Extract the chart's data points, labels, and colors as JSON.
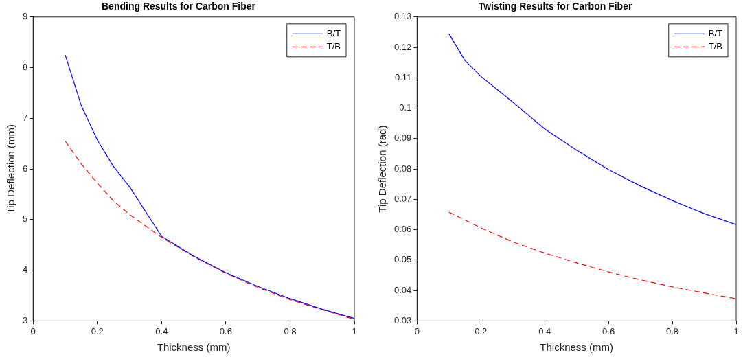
{
  "chart_data": [
    {
      "type": "line",
      "title": "Bending Results for Carbon Fiber",
      "xlabel": "Thickness (mm)",
      "ylabel": "Tip Deflection (mm)",
      "xlim": [
        0,
        1
      ],
      "xticks": [
        0,
        0.2,
        0.4,
        0.6,
        0.8,
        1
      ],
      "ylim": [
        3,
        9
      ],
      "yticks": [
        3,
        4,
        5,
        6,
        7,
        8,
        9
      ],
      "grid": false,
      "legend": "top right",
      "series": [
        {
          "name": "B/T",
          "color": "#0000ff",
          "line_style": "solid",
          "x": [
            0.1,
            0.15,
            0.2,
            0.25,
            0.3,
            0.4,
            0.5,
            0.6,
            0.7,
            0.8,
            0.9,
            1.0
          ],
          "values": [
            8.25,
            7.25,
            6.57,
            6.05,
            5.65,
            4.67,
            4.28,
            3.95,
            3.68,
            3.44,
            3.23,
            3.05
          ]
        },
        {
          "name": "T/B",
          "color": "#ff0000",
          "line_style": "dashed",
          "x": [
            0.1,
            0.15,
            0.2,
            0.25,
            0.3,
            0.4,
            0.5,
            0.6,
            0.7,
            0.8,
            0.9,
            1.0
          ],
          "values": [
            6.55,
            6.1,
            5.72,
            5.37,
            5.1,
            4.65,
            4.27,
            3.94,
            3.66,
            3.42,
            3.22,
            3.03
          ]
        }
      ]
    },
    {
      "type": "line",
      "title": "Twisting Results for Carbon Fiber",
      "xlabel": "Thickness (mm)",
      "ylabel": "Tip Deflection (rad)",
      "xlim": [
        0,
        1
      ],
      "xticks": [
        0,
        0.2,
        0.4,
        0.6,
        0.8,
        1
      ],
      "ylim": [
        0.03,
        0.13
      ],
      "yticks": [
        0.03,
        0.04,
        0.05,
        0.06,
        0.07,
        0.08,
        0.09,
        0.1,
        0.11,
        0.12,
        0.13
      ],
      "grid": false,
      "legend": "top right",
      "series": [
        {
          "name": "B/T",
          "color": "#0000ff",
          "line_style": "solid",
          "x": [
            0.1,
            0.15,
            0.2,
            0.3,
            0.4,
            0.5,
            0.6,
            0.7,
            0.8,
            0.9,
            1.0
          ],
          "values": [
            0.1245,
            0.1157,
            0.1105,
            0.102,
            0.0932,
            0.0862,
            0.0798,
            0.0744,
            0.0696,
            0.0653,
            0.0617
          ]
        },
        {
          "name": "T/B",
          "color": "#ff0000",
          "line_style": "dashed",
          "x": [
            0.1,
            0.2,
            0.3,
            0.4,
            0.5,
            0.6,
            0.7,
            0.8,
            0.9,
            1.0
          ],
          "values": [
            0.0658,
            0.0606,
            0.056,
            0.0523,
            0.0491,
            0.0461,
            0.0435,
            0.0412,
            0.0392,
            0.0373
          ]
        }
      ]
    }
  ]
}
